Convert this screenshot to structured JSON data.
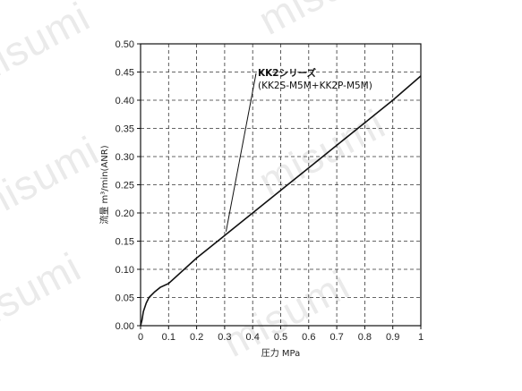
{
  "watermark": {
    "text": "misumi"
  },
  "chart_data": {
    "type": "line",
    "title": "",
    "xlabel": "圧力 MPa",
    "ylabel": "流量 m³/min(ANR)",
    "xlim": [
      0,
      1
    ],
    "ylim": [
      0,
      0.5
    ],
    "x_ticks": [
      "0",
      "0.1",
      "0.2",
      "0.3",
      "0.4",
      "0.5",
      "0.6",
      "0.7",
      "0.8",
      "0.9",
      "1"
    ],
    "y_ticks": [
      "0.00",
      "0.05",
      "0.10",
      "0.15",
      "0.20",
      "0.25",
      "0.30",
      "0.35",
      "0.40",
      "0.45",
      "0.50"
    ],
    "grid": true,
    "series": [
      {
        "name": "KK2シリーズ (KK2S-M5M+KK2P-M5M)",
        "x": [
          0,
          0.005,
          0.01,
          0.02,
          0.03,
          0.05,
          0.07,
          0.1,
          0.2,
          0.3,
          0.4,
          0.5,
          0.6,
          0.7,
          0.8,
          0.9,
          1.0
        ],
        "y": [
          0,
          0.01,
          0.025,
          0.04,
          0.05,
          0.06,
          0.068,
          0.075,
          0.12,
          0.16,
          0.2,
          0.24,
          0.28,
          0.32,
          0.36,
          0.4,
          0.443
        ]
      }
    ],
    "annotation": {
      "title": "KK2シリーズ",
      "subtitle": "(KK2S-M5M+KK2P-M5M)",
      "point": [
        0.305,
        0.167
      ]
    }
  }
}
